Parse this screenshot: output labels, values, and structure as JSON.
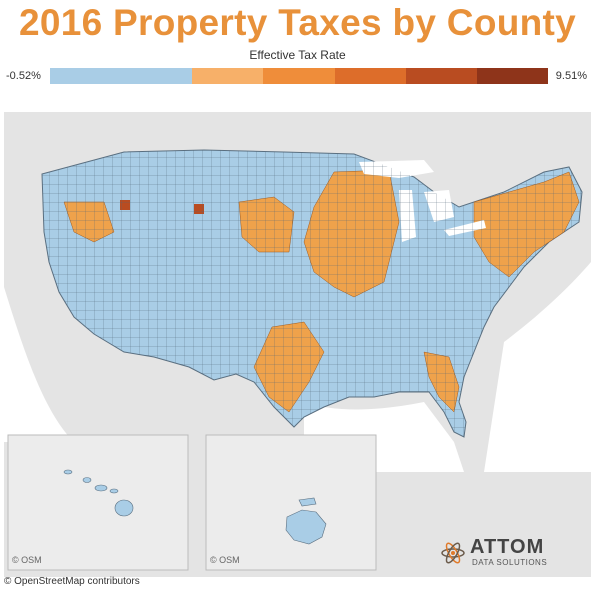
{
  "title": "2016 Property Taxes by County",
  "legend": {
    "title": "Effective Tax Rate",
    "min": "-0.52%",
    "max": "9.51%",
    "colors": [
      "#a9cde6",
      "#a9cde6",
      "#f7b069",
      "#ef8d3a",
      "#dd6d2a",
      "#b94c21",
      "#8e341a"
    ]
  },
  "map": {
    "region": "United States counties",
    "land_color": "#a9cde6",
    "high_color": "#efa24b",
    "background_color": "#e4e4e4",
    "water_color": "#ffffff",
    "inset_hawaii_osm": "© OSM",
    "inset_alaska_osm": "© OSM"
  },
  "attribution": "© OpenStreetMap contributors",
  "logo": {
    "name": "ATTOM",
    "sub": "DATA SOLUTIONS"
  }
}
